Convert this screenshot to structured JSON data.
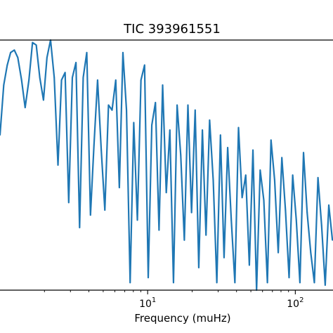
{
  "chart_data": {
    "type": "line",
    "title": "TIC 393961551",
    "xlabel": "Frequency (muHz)",
    "ylabel": "",
    "xscale": "log",
    "xlim": [
      1.0,
      180.0
    ],
    "ylim": [
      0.0,
      1.0
    ],
    "grid": false,
    "x_ticks": [
      {
        "value": 10,
        "base": "10",
        "exponent": "1"
      },
      {
        "value": 100,
        "base": "10",
        "exponent": "2"
      }
    ],
    "series_color": "#1f77b4",
    "series": [
      {
        "x": [
          1.0,
          1.06,
          1.12,
          1.18,
          1.25,
          1.32,
          1.4,
          1.48,
          1.57,
          1.66,
          1.76,
          1.86,
          1.97,
          2.08,
          2.2,
          2.33,
          2.47,
          2.61,
          2.76,
          2.92,
          3.09,
          3.27,
          3.46,
          3.66,
          3.87,
          4.1,
          4.33,
          4.58,
          4.85,
          5.13,
          5.43,
          5.74,
          6.08,
          6.43,
          6.8,
          7.19,
          7.61,
          8.05,
          8.52,
          9.01,
          9.53,
          10.09,
          10.67,
          11.29,
          11.94,
          12.63,
          13.37,
          14.14,
          14.96,
          15.83,
          16.75,
          17.72,
          18.74,
          19.83,
          20.98,
          22.19,
          23.48,
          24.84,
          26.28,
          27.8,
          29.41,
          31.12,
          32.92,
          34.83,
          36.85,
          38.98,
          41.24,
          43.63,
          46.16,
          48.83,
          51.66,
          54.66,
          57.82,
          61.18,
          64.72,
          68.47,
          72.44,
          76.63,
          81.07,
          85.77,
          90.74,
          96.0,
          101.56,
          107.45,
          113.67,
          120.26,
          127.23,
          134.6,
          142.4,
          150.65,
          159.38,
          168.61,
          178.38
        ],
        "y": [
          0.62,
          0.82,
          0.9,
          0.95,
          0.96,
          0.93,
          0.84,
          0.73,
          0.84,
          0.99,
          0.98,
          0.85,
          0.76,
          0.93,
          1.0,
          0.85,
          0.5,
          0.84,
          0.87,
          0.35,
          0.85,
          0.91,
          0.25,
          0.85,
          0.95,
          0.3,
          0.58,
          0.84,
          0.56,
          0.32,
          0.74,
          0.72,
          0.84,
          0.41,
          0.95,
          0.72,
          0.03,
          0.67,
          0.28,
          0.84,
          0.9,
          0.05,
          0.66,
          0.75,
          0.24,
          0.82,
          0.39,
          0.64,
          0.03,
          0.74,
          0.54,
          0.2,
          0.74,
          0.31,
          0.72,
          0.09,
          0.64,
          0.22,
          0.68,
          0.44,
          0.03,
          0.62,
          0.13,
          0.57,
          0.28,
          0.03,
          0.65,
          0.37,
          0.46,
          0.1,
          0.56,
          0.0,
          0.48,
          0.36,
          0.03,
          0.6,
          0.44,
          0.15,
          0.53,
          0.32,
          0.05,
          0.46,
          0.28,
          0.03,
          0.55,
          0.31,
          0.15,
          0.03,
          0.45,
          0.26,
          0.02,
          0.34,
          0.2
        ]
      }
    ]
  }
}
